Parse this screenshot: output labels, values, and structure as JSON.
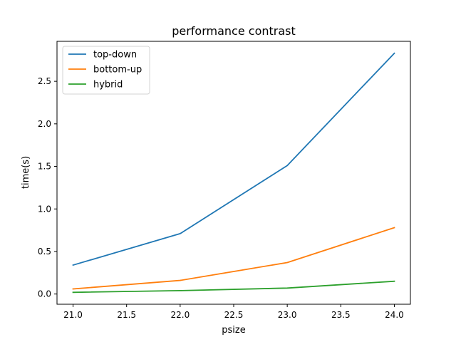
{
  "chart_data": {
    "type": "line",
    "title": "performance contrast",
    "xlabel": "psize",
    "ylabel": "time(s)",
    "x": [
      21,
      22,
      23,
      24
    ],
    "series": [
      {
        "name": "top-down",
        "values": [
          0.34,
          0.71,
          1.51,
          2.83
        ],
        "color": "#1f77b4"
      },
      {
        "name": "bottom-up",
        "values": [
          0.06,
          0.16,
          0.37,
          0.78
        ],
        "color": "#ff7f0e"
      },
      {
        "name": "hybrid",
        "values": [
          0.02,
          0.04,
          0.07,
          0.15
        ],
        "color": "#2ca02c"
      }
    ],
    "xlim": [
      20.85,
      24.15
    ],
    "ylim": [
      -0.12,
      2.97
    ],
    "x_ticks": [
      "21.0",
      "21.5",
      "22.0",
      "22.5",
      "23.0",
      "23.5",
      "24.0"
    ],
    "y_ticks": [
      "0.0",
      "0.5",
      "1.0",
      "1.5",
      "2.0",
      "2.5"
    ],
    "grid": false,
    "legend_position": "top-left"
  }
}
